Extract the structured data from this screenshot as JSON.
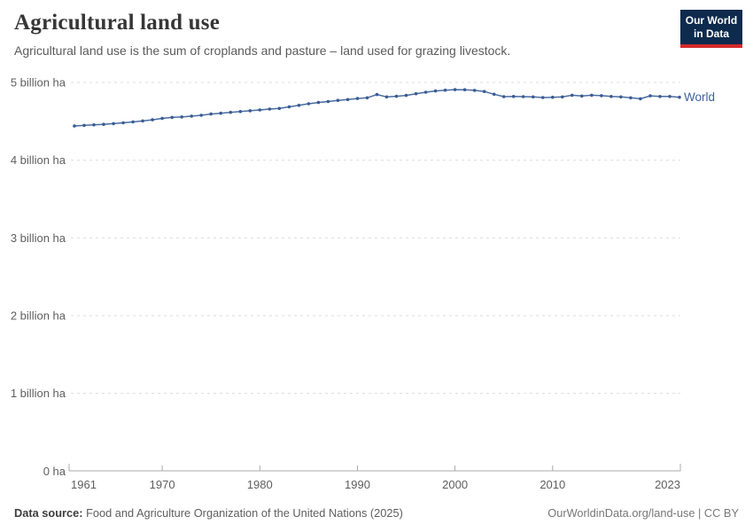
{
  "header": {
    "title": "Agricultural land use",
    "subtitle": "Agricultural land use is the sum of croplands and pasture – land used for grazing livestock."
  },
  "logo": {
    "line1": "Our World",
    "line2": "in Data",
    "bg_color": "#0e2a4d",
    "accent_color": "#d42b2b"
  },
  "chart_data": {
    "type": "line",
    "title": "Agricultural land use",
    "unit": "billion ha",
    "ylim": [
      0,
      5
    ],
    "grid": "dashed-horizontal",
    "legend_position": "end-of-line",
    "y_ticks": [
      {
        "value": 5,
        "label": "5 billion ha"
      },
      {
        "value": 4,
        "label": "4 billion ha"
      },
      {
        "value": 3,
        "label": "3 billion ha"
      },
      {
        "value": 2,
        "label": "2 billion ha"
      },
      {
        "value": 1,
        "label": "1 billion ha"
      },
      {
        "value": 0,
        "label": "0 ha"
      }
    ],
    "x_tick_labels": [
      "1961",
      "1970",
      "1980",
      "1990",
      "2000",
      "2010",
      "2023"
    ],
    "x": [
      1961,
      1962,
      1963,
      1964,
      1965,
      1966,
      1967,
      1968,
      1969,
      1970,
      1971,
      1972,
      1973,
      1974,
      1975,
      1976,
      1977,
      1978,
      1979,
      1980,
      1981,
      1982,
      1983,
      1984,
      1985,
      1986,
      1987,
      1988,
      1989,
      1990,
      1991,
      1992,
      1993,
      1994,
      1995,
      1996,
      1997,
      1998,
      1999,
      2000,
      2001,
      2002,
      2003,
      2004,
      2005,
      2006,
      2007,
      2008,
      2009,
      2010,
      2011,
      2012,
      2013,
      2014,
      2015,
      2016,
      2017,
      2018,
      2019,
      2020,
      2021,
      2022,
      2023
    ],
    "series": [
      {
        "name": "World",
        "line_color": "#4a6ba1",
        "marker_color": "#3a5c94",
        "label_color": "#3d6399",
        "values": [
          4.44,
          4.448,
          4.455,
          4.462,
          4.471,
          4.481,
          4.492,
          4.505,
          4.52,
          4.538,
          4.55,
          4.556,
          4.566,
          4.578,
          4.594,
          4.604,
          4.615,
          4.626,
          4.636,
          4.646,
          4.658,
          4.666,
          4.686,
          4.706,
          4.726,
          4.742,
          4.755,
          4.77,
          4.78,
          4.794,
          4.803,
          4.845,
          4.814,
          4.822,
          4.834,
          4.855,
          4.874,
          4.89,
          4.901,
          4.908,
          4.906,
          4.898,
          4.884,
          4.848,
          4.818,
          4.82,
          4.818,
          4.814,
          4.806,
          4.81,
          4.814,
          4.836,
          4.826,
          4.836,
          4.83,
          4.82,
          4.814,
          4.803,
          4.79,
          4.828,
          4.82,
          4.82,
          4.81
        ]
      }
    ]
  },
  "footer": {
    "source_label": "Data source:",
    "source_text": " Food and Agriculture Organization of the United Nations (2025)",
    "credit": "OurWorldinData.org/land-use | CC BY"
  }
}
